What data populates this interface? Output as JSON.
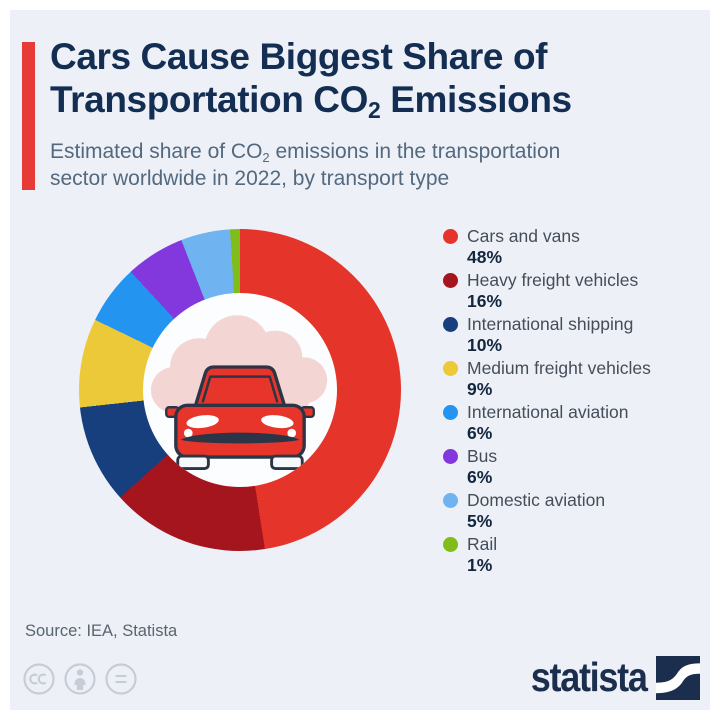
{
  "header": {
    "title": {
      "line1": "Cars Cause Biggest Share of",
      "line2_pre": "Transportation CO",
      "line2_sub": "2",
      "line2_post": " Emissions"
    },
    "subtitle": {
      "line1_pre": "Estimated share of CO",
      "line1_sub": "2",
      "line1_post": " emissions in the transportation",
      "line2": "sector worldwide in 2022, by transport type"
    }
  },
  "chart_data": {
    "type": "pie",
    "subtype": "donut",
    "title": "Estimated share of CO2 emissions in the transportation sector worldwide in 2022, by transport type",
    "unit": "%",
    "start_angle_deg": 0,
    "direction": "clockwise",
    "legend_position": "right",
    "center_icon": "red-car-with-co2-exhaust-cloud",
    "series": [
      {
        "label": "Cars and vans",
        "value": 48,
        "color": "#e5352a"
      },
      {
        "label": "Heavy freight vehicles",
        "value": 16,
        "color": "#a5151d"
      },
      {
        "label": "International shipping",
        "value": 10,
        "color": "#173f7d"
      },
      {
        "label": "Medium freight vehicles",
        "value": 9,
        "color": "#ecc938"
      },
      {
        "label": "International aviation",
        "value": 6,
        "color": "#2395f0"
      },
      {
        "label": "Bus",
        "value": 6,
        "color": "#8238dd"
      },
      {
        "label": "Domestic aviation",
        "value": 5,
        "color": "#6fb3f0"
      },
      {
        "label": "Rail",
        "value": 1,
        "color": "#80bc1a"
      }
    ]
  },
  "footer": {
    "source": "Source: IEA, Statista",
    "license_icons": [
      "cc-icon",
      "attribution-person-icon",
      "equals-icon"
    ],
    "brand": "statista"
  },
  "colors": {
    "background": "#edf1f7",
    "frame": "#ffffff",
    "accent": "#e73b38",
    "title": "#132e52",
    "subtitle": "#54687e",
    "legend_label": "#454d59",
    "legend_value": "#14263f",
    "donut_hole": "#fcfdff",
    "cloud": "#f3d6d3",
    "car_red": "#e8352b",
    "car_outline": "#2b3546",
    "source": "#5a646e",
    "license": "#c7cdd6",
    "brand": "#1b2e4e"
  }
}
